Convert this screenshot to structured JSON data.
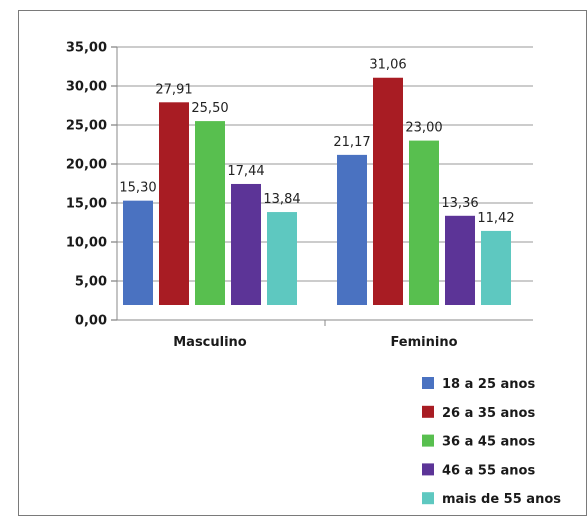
{
  "chart_data": {
    "type": "bar",
    "categories": [
      "Masculino",
      "Feminino"
    ],
    "series": [
      {
        "name": "18 a 25 anos",
        "values": [
          15.3,
          21.17
        ],
        "labels": [
          "15,30",
          "21,17"
        ],
        "color": "#4a72c1"
      },
      {
        "name": "26 a 35 anos",
        "values": [
          27.91,
          31.06
        ],
        "labels": [
          "27,91",
          "31,06"
        ],
        "color": "#a81c23"
      },
      {
        "name": "36 a 45 anos",
        "values": [
          25.5,
          23.0
        ],
        "labels": [
          "25,50",
          "23,00"
        ],
        "color": "#58bf4f"
      },
      {
        "name": "46 a 55 anos",
        "values": [
          17.44,
          13.36
        ],
        "labels": [
          "17,44",
          "13,36"
        ],
        "color": "#5c3497"
      },
      {
        "name": "mais de 55 anos",
        "values": [
          13.84,
          11.42
        ],
        "labels": [
          "13,84",
          "11,42"
        ],
        "color": "#5ec8c0"
      }
    ],
    "yticks": [
      "0,00",
      "5,00",
      "10,00",
      "15,00",
      "20,00",
      "25,00",
      "30,00",
      "35,00"
    ],
    "ylim": [
      0,
      35
    ],
    "grid": true,
    "legend": "bottom-right",
    "title": "",
    "xlabel": "",
    "ylabel": ""
  }
}
